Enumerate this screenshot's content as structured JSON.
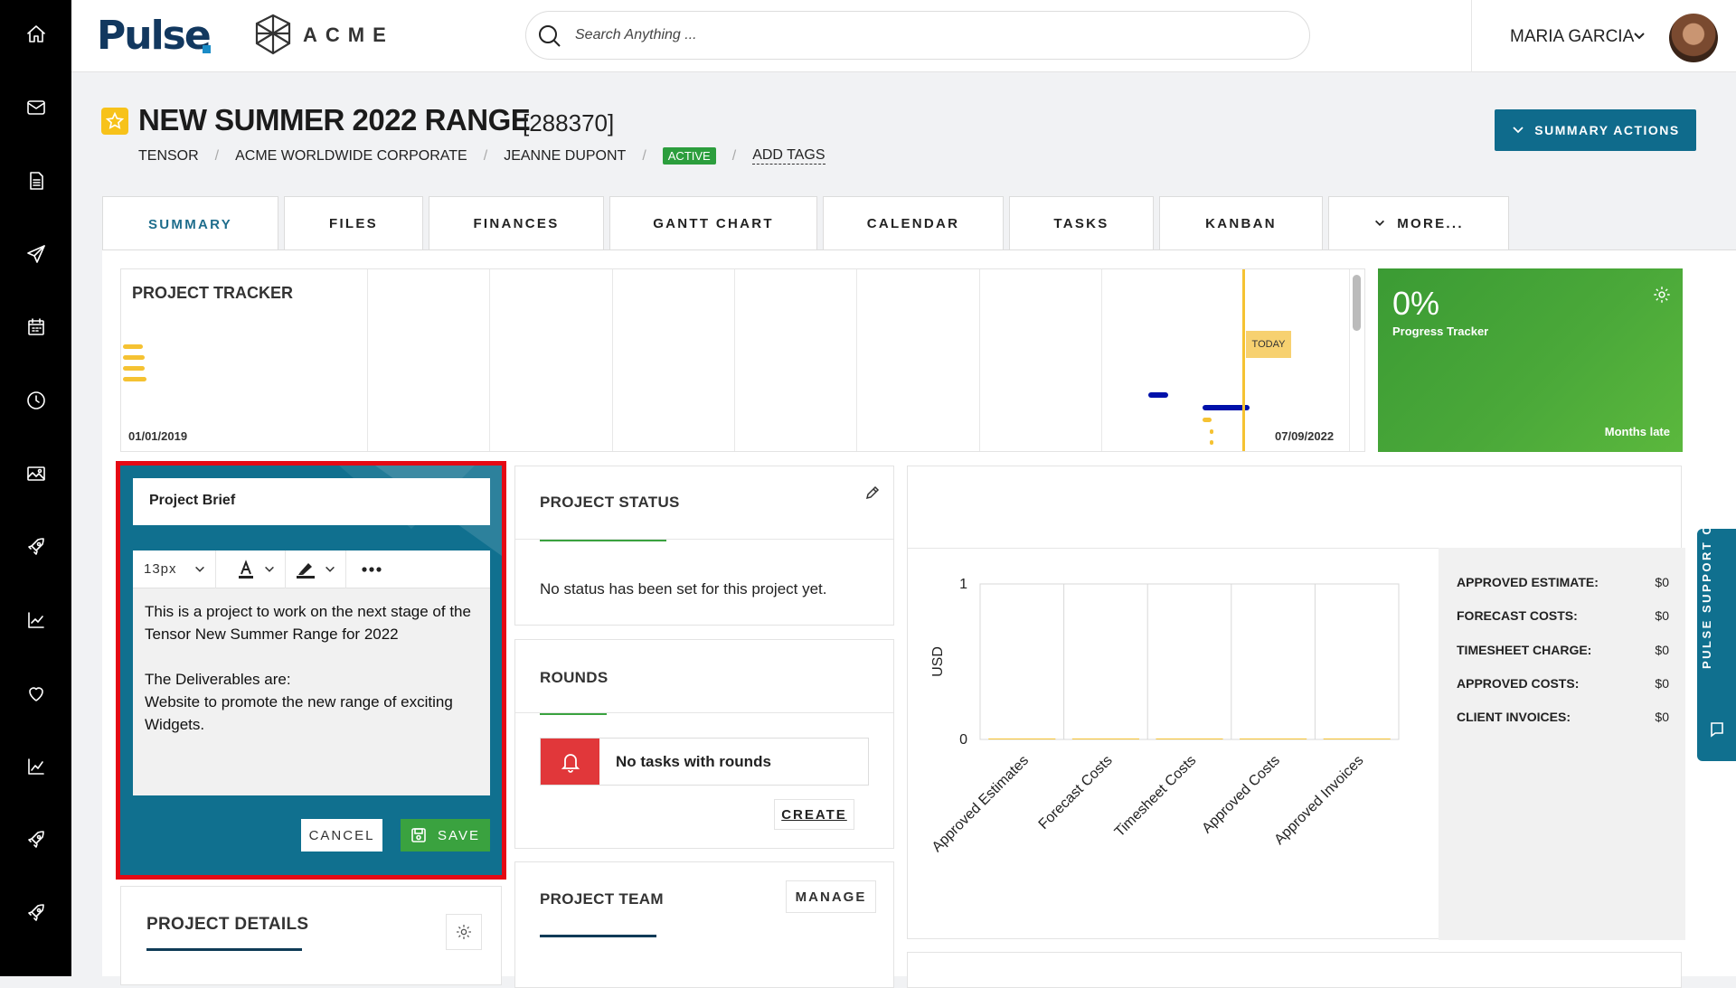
{
  "sidebar": {
    "items": [
      {
        "icon": "home-icon"
      },
      {
        "icon": "mail-icon"
      },
      {
        "icon": "document-icon"
      },
      {
        "icon": "send-icon"
      },
      {
        "icon": "calendar-icon"
      },
      {
        "icon": "clock-icon"
      },
      {
        "icon": "image-icon"
      },
      {
        "icon": "rocket-icon"
      },
      {
        "icon": "chart-icon"
      },
      {
        "icon": "heart-icon"
      },
      {
        "icon": "chart-icon"
      },
      {
        "icon": "rocket-icon"
      },
      {
        "icon": "rocket-icon"
      }
    ]
  },
  "header": {
    "logo_text": "Pulse",
    "client_logo_text": "ACME",
    "search_placeholder": "Search Anything ...",
    "user_name": "MARIA GARCIA"
  },
  "project": {
    "title": "NEW SUMMER 2022 RANGE",
    "id": "[288370]",
    "breadcrumb": [
      "TENSOR",
      "ACME WORLDWIDE CORPORATE",
      "JEANNE DUPONT"
    ],
    "status_badge": "ACTIVE",
    "add_tags": "ADD TAGS",
    "summary_actions": "SUMMARY ACTIONS"
  },
  "tabs": [
    "SUMMARY",
    "FILES",
    "FINANCES",
    "GANTT CHART",
    "CALENDAR",
    "TASKS",
    "KANBAN",
    "MORE..."
  ],
  "tracker": {
    "title": "PROJECT TRACKER",
    "start_date": "01/01/2019",
    "end_date": "07/09/2022",
    "today_label": "TODAY"
  },
  "progress": {
    "percent": "0%",
    "label": "Progress Tracker",
    "status": "Months late"
  },
  "brief": {
    "title": "Project Brief",
    "font_size": "13px",
    "line1": "This is a project to work on the next stage of the Tensor New Summer Range for 2022",
    "line2": "The Deliverables are:",
    "line3": "Website to promote the new range of exciting Widgets.",
    "cancel": "CANCEL",
    "save": "SAVE"
  },
  "status_card": {
    "title": "PROJECT STATUS",
    "body": "No status has been set for this project yet."
  },
  "rounds": {
    "title": "ROUNDS",
    "message": "No tasks with rounds",
    "create": "CREATE"
  },
  "team": {
    "title": "PROJECT TEAM",
    "manage": "MANAGE"
  },
  "details": {
    "title": "PROJECT DETAILS"
  },
  "finance": {
    "rows": [
      {
        "label": "APPROVED ESTIMATE:",
        "value": "$0"
      },
      {
        "label": "FORECAST COSTS:",
        "value": "$0"
      },
      {
        "label": "TIMESHEET CHARGE:",
        "value": "$0"
      },
      {
        "label": "APPROVED COSTS:",
        "value": "$0"
      },
      {
        "label": "CLIENT INVOICES:",
        "value": "$0"
      }
    ]
  },
  "chart_data": {
    "type": "bar",
    "categories": [
      "Approved Estimates",
      "Forecast Costs",
      "Timesheet Costs",
      "Approved Costs",
      "Approved Invoices"
    ],
    "values": [
      0,
      0,
      0,
      0,
      0
    ],
    "ylabel": "USD",
    "ylim": [
      0,
      1
    ],
    "yticks": [
      "1",
      "0"
    ],
    "grid": true
  },
  "support_chat": "PULSE SUPPORT CHAT",
  "colors": {
    "brand_teal": "#10708f",
    "progress_green": "#4aa839",
    "alert_red": "#e1373a",
    "active_badge": "#2c9e3d",
    "tracker_yellow": "#f5c232",
    "tracker_blue": "#0011aa"
  }
}
